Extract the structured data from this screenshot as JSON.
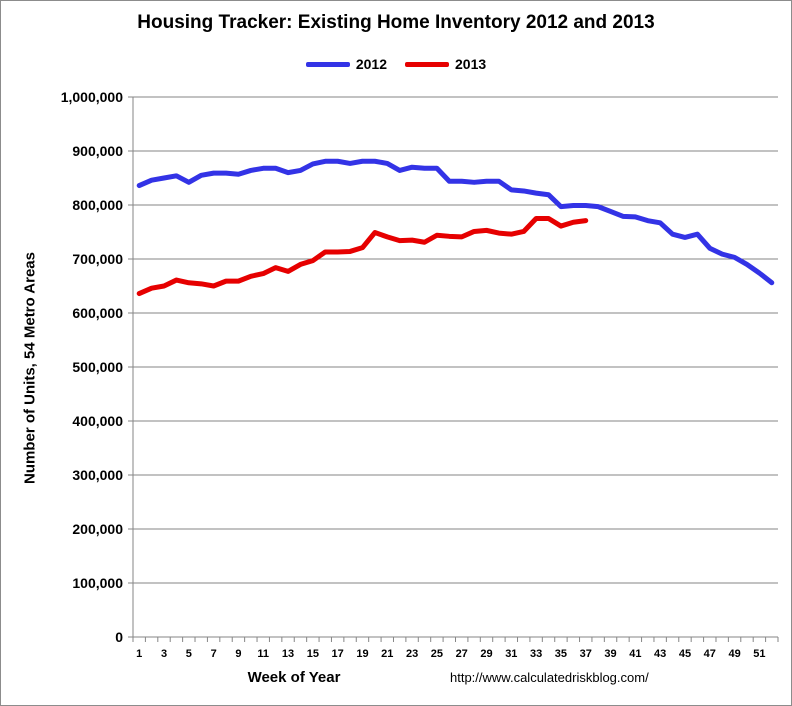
{
  "chart_data": {
    "type": "line",
    "title": "Housing Tracker: Existing Home Inventory 2012 and 2013",
    "xlabel": "Week of Year",
    "ylabel": "Number of Units, 54 Metro Areas",
    "source": "http://www.calculatedriskblog.com/",
    "ylim": [
      0,
      1000000
    ],
    "xlim": [
      1,
      52
    ],
    "grid": "horizontal",
    "legend_position": "top-center",
    "y_ticks": [
      "0",
      "100,000",
      "200,000",
      "300,000",
      "400,000",
      "500,000",
      "600,000",
      "700,000",
      "800,000",
      "900,000",
      "1,000,000"
    ],
    "x_ticks": [
      "1",
      "3",
      "5",
      "7",
      "9",
      "11",
      "13",
      "15",
      "17",
      "19",
      "21",
      "23",
      "25",
      "27",
      "29",
      "31",
      "33",
      "35",
      "37",
      "39",
      "41",
      "43",
      "45",
      "47",
      "49",
      "51"
    ],
    "series": [
      {
        "name": "2012",
        "color": "#3333e6",
        "values": [
          836000,
          846000,
          850000,
          854000,
          842000,
          855000,
          859000,
          859000,
          857000,
          864000,
          868000,
          868000,
          860000,
          864000,
          876000,
          881000,
          881000,
          877000,
          881000,
          881000,
          877000,
          864000,
          870000,
          868000,
          868000,
          844000,
          844000,
          842000,
          844000,
          844000,
          828000,
          826000,
          822000,
          819000,
          797000,
          799000,
          799000,
          797000,
          788000,
          779000,
          778000,
          771000,
          767000,
          746000,
          740000,
          746000,
          720000,
          709000,
          703000,
          690000,
          674000,
          656000
        ]
      },
      {
        "name": "2013",
        "color": "#e60000",
        "values": [
          636000,
          646000,
          650000,
          661000,
          656000,
          654000,
          650000,
          659000,
          659000,
          668000,
          673000,
          684000,
          677000,
          690000,
          697000,
          713000,
          713000,
          714000,
          721000,
          749000,
          741000,
          734000,
          735000,
          731000,
          744000,
          742000,
          741000,
          751000,
          753000,
          748000,
          746000,
          751000,
          775000,
          775000,
          761000,
          768000,
          771000
        ]
      }
    ]
  }
}
